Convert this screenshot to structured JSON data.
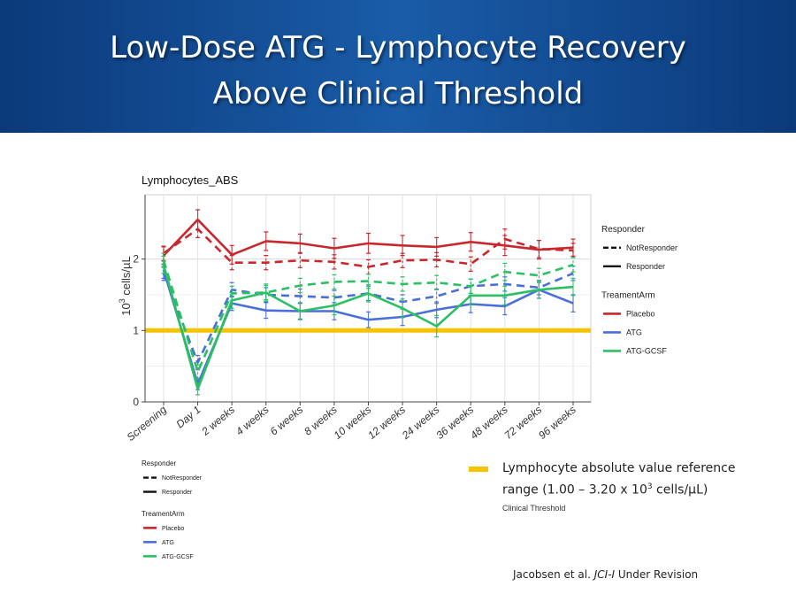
{
  "slide": {
    "title_line1": "Low-Dose ATG - Lymphocyte Recovery",
    "title_line2": "Above Clinical Threshold",
    "colors": {
      "banner": "#0b3a7a",
      "reference": "#f5c400"
    }
  },
  "reference_note": {
    "line1": "Lymphocyte absolute value reference",
    "line2_prefix": "range (1.00 – 3.20 x 10",
    "line2_sup": "3",
    "line2_suffix": " cells/µL)",
    "threshold_label": "Clinical Threshold"
  },
  "citation": {
    "prefix": "Jacobsen et al. ",
    "journal": "JCI-I",
    "suffix": " Under Revision"
  },
  "chart_data": {
    "type": "line",
    "title": "Lymphocytes_ABS",
    "ylabel_prefix": "10",
    "ylabel_sup": "3",
    "ylabel_suffix": " cells/µL",
    "xlabel": "",
    "categories": [
      "Screening",
      "Day 1",
      "2 weeks",
      "4 weeks",
      "6 weeks",
      "8 weeks",
      "10 weeks",
      "12 weeks",
      "24 weeks",
      "36 weeks",
      "48 weeks",
      "72 weeks",
      "96 weeks"
    ],
    "ylim": [
      0,
      2.9
    ],
    "yticks": [
      0,
      1,
      2
    ],
    "reference_line": {
      "value": 1.0,
      "color": "#f5c400"
    },
    "legend": {
      "responder_title": "Responder",
      "responder_items": [
        "NotResponder",
        "Responder"
      ],
      "arm_title": "TreamentArm",
      "arm_items": [
        {
          "name": "Placebo",
          "color": "#c8282d"
        },
        {
          "name": "ATG",
          "color": "#4a6fd8"
        },
        {
          "name": "ATG-GCSF",
          "color": "#2cc064"
        }
      ]
    },
    "series": [
      {
        "name": "Placebo Responder",
        "arm": "Placebo",
        "style": "solid",
        "color": "#c8282d",
        "values": [
          2.05,
          2.55,
          2.06,
          2.25,
          2.22,
          2.15,
          2.22,
          2.19,
          2.17,
          2.24,
          2.19,
          2.13,
          2.16
        ],
        "errors": [
          0.12,
          0.14,
          0.13,
          0.13,
          0.13,
          0.14,
          0.14,
          0.14,
          0.13,
          0.13,
          0.14,
          0.13,
          0.12
        ]
      },
      {
        "name": "Placebo NotResponder",
        "arm": "Placebo",
        "style": "dashed",
        "color": "#c8282d",
        "values": [
          2.08,
          2.42,
          1.95,
          1.95,
          1.98,
          1.96,
          1.89,
          1.98,
          1.99,
          1.93,
          2.28,
          2.14,
          2.12
        ],
        "errors": [
          0.1,
          0.12,
          0.1,
          0.1,
          0.1,
          0.1,
          0.1,
          0.1,
          0.1,
          0.1,
          0.14,
          0.12,
          0.1
        ]
      },
      {
        "name": "ATG Responder",
        "arm": "ATG",
        "style": "solid",
        "color": "#4a6fd8",
        "values": [
          1.85,
          0.25,
          1.38,
          1.28,
          1.27,
          1.27,
          1.15,
          1.19,
          1.29,
          1.37,
          1.34,
          1.57,
          1.38
        ],
        "errors": [
          0.12,
          0.08,
          0.1,
          0.11,
          0.11,
          0.12,
          0.11,
          0.12,
          0.11,
          0.12,
          0.12,
          0.12,
          0.12
        ]
      },
      {
        "name": "ATG NotResponder",
        "arm": "ATG",
        "style": "dashed",
        "color": "#4a6fd8",
        "values": [
          1.8,
          0.55,
          1.57,
          1.5,
          1.48,
          1.46,
          1.52,
          1.4,
          1.48,
          1.62,
          1.65,
          1.6,
          1.8
        ],
        "errors": [
          0.1,
          0.1,
          0.1,
          0.1,
          0.1,
          0.1,
          0.1,
          0.1,
          0.1,
          0.1,
          0.1,
          0.1,
          0.1
        ]
      },
      {
        "name": "ATG-GCSF Responder",
        "arm": "ATG-GCSF",
        "style": "solid",
        "color": "#2cc064",
        "values": [
          1.92,
          0.18,
          1.42,
          1.53,
          1.27,
          1.35,
          1.52,
          1.31,
          1.06,
          1.49,
          1.49,
          1.57,
          1.61
        ],
        "errors": [
          0.12,
          0.08,
          0.11,
          0.12,
          0.12,
          0.13,
          0.12,
          0.13,
          0.15,
          0.13,
          0.13,
          0.12,
          0.12
        ]
      },
      {
        "name": "ATG-GCSF NotResponder",
        "arm": "ATG-GCSF",
        "style": "dashed",
        "color": "#2cc064",
        "values": [
          1.98,
          0.42,
          1.52,
          1.53,
          1.63,
          1.68,
          1.69,
          1.65,
          1.67,
          1.62,
          1.82,
          1.77,
          1.92
        ],
        "errors": [
          0.1,
          0.1,
          0.1,
          0.1,
          0.1,
          0.1,
          0.1,
          0.1,
          0.1,
          0.1,
          0.12,
          0.1,
          0.1
        ]
      }
    ]
  }
}
